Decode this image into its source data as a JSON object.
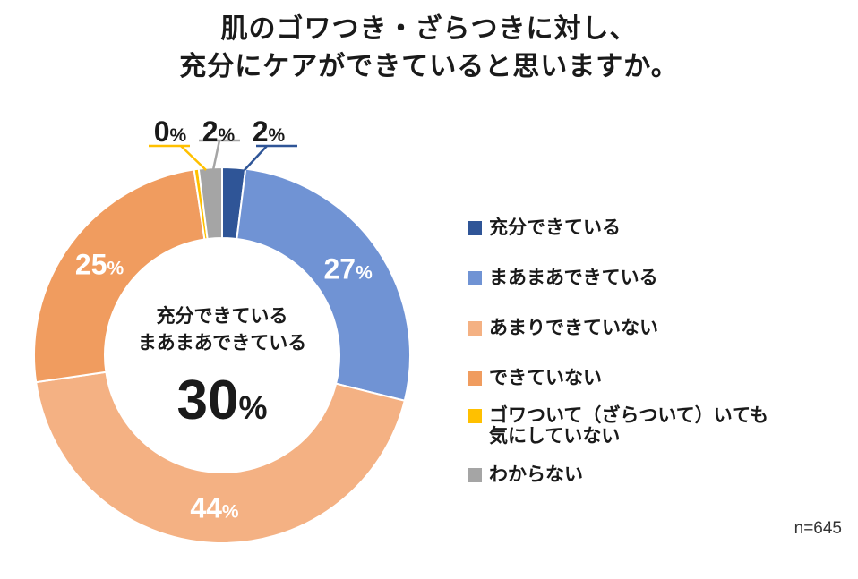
{
  "chart_data": {
    "type": "pie",
    "title": [
      "肌のゴワつき・ざらつきに対し、",
      "充分にケアができていると思いますか。"
    ],
    "slices": [
      {
        "label": "充分できている",
        "value": 2,
        "display": "2",
        "color": "#2F5597"
      },
      {
        "label": "まあまあできている",
        "value": 27,
        "display": "27",
        "color": "#7093D4"
      },
      {
        "label": "あまりできていない",
        "value": 44,
        "display": "44",
        "color": "#F4B183"
      },
      {
        "label": "できていない",
        "value": 25,
        "display": "25",
        "color": "#F09C5F"
      },
      {
        "label": "ゴワついて（ざらついて）いても\n気にしていない",
        "value": 0.4,
        "display": "0",
        "color": "#FFC000"
      },
      {
        "label": "わからない",
        "value": 2,
        "display": "2",
        "color": "#A5A5A5"
      }
    ],
    "center_text": {
      "lines": [
        "充分できている",
        "まあまあできている"
      ],
      "value": "30"
    },
    "percent_sign": "%",
    "note": "n=645",
    "legend_position": "right"
  }
}
